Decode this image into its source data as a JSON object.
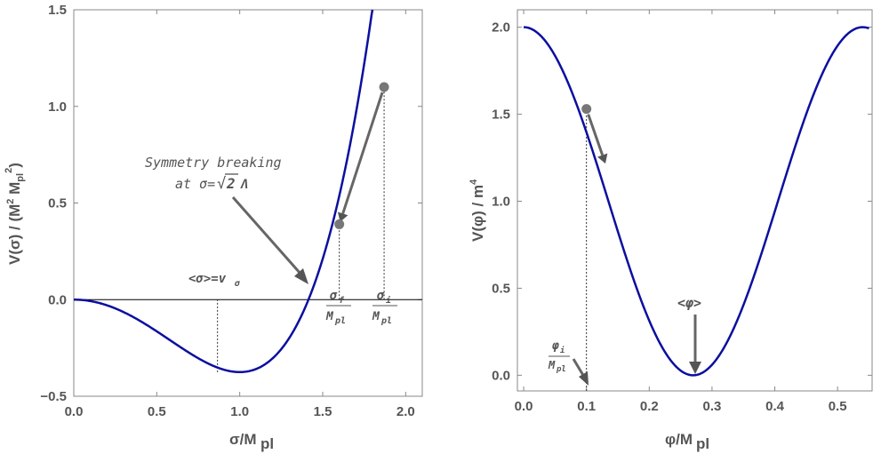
{
  "chart_data": [
    {
      "type": "line",
      "title": "",
      "xlabel": "σ/M",
      "xlabel_sub": "pl",
      "ylabel": "V(σ) / (M",
      "ylabel_sup1": "2",
      "ylabel_mid": " M",
      "ylabel_sub": "pl",
      "ylabel_sup2": "2",
      "ylabel_end": ")",
      "xlim": [
        0,
        2.1
      ],
      "ylim": [
        -0.5,
        1.5
      ],
      "xticks": [
        0.0,
        0.5,
        1.0,
        1.5,
        2.0
      ],
      "xtick_labels": [
        "0.0",
        "0.5",
        "1.0",
        "1.5",
        "2.0"
      ],
      "yticks": [
        -0.5,
        0.0,
        0.5,
        1.0,
        1.5
      ],
      "ytick_labels": [
        "−0.5",
        "0.0",
        "0.5",
        "1.0",
        "1.5"
      ],
      "series": [
        {
          "name": "V(σ)",
          "color": "#0b0f9f",
          "formula": "0.375*x^2*(x^2-2)",
          "x_range": [
            0,
            2.13
          ]
        }
      ],
      "reference_lines": [
        {
          "axis": "y",
          "value": 0.0,
          "color": "#000000"
        }
      ],
      "points": [
        {
          "name": "sigma-i",
          "x": 1.87,
          "y": 1.1
        },
        {
          "name": "sigma-f",
          "x": 1.6,
          "y": 0.39
        }
      ],
      "vertical_dotted": [
        {
          "x": 0.866,
          "y_from": -0.375,
          "y_to": 0.0
        },
        {
          "x": 1.6,
          "y_from": 0.0,
          "y_to": 0.39
        },
        {
          "x": 1.87,
          "y_from": 0.0,
          "y_to": 1.1
        }
      ],
      "annotations": {
        "symmetry_line1": "Symmetry breaking",
        "symmetry_line2_prefix": "at σ=",
        "symmetry_sqrt_arg": "2",
        "symmetry_lambda": "Λ",
        "vev_left": "<σ>=v",
        "vev_sub": "σ",
        "sigma_f_num": "σ",
        "sigma_f_num_sub": "f",
        "sigma_f_den": "M",
        "sigma_f_den_sub": "pl",
        "sigma_i_num": "σ",
        "sigma_i_num_sub": "i",
        "sigma_i_den": "M",
        "sigma_i_den_sub": "pl"
      }
    },
    {
      "type": "line",
      "title": "",
      "xlabel": "φ/M",
      "xlabel_sub": "pl",
      "ylabel": "V(φ) / m",
      "ylabel_sup": "4",
      "xlim": [
        -0.01,
        0.555
      ],
      "ylim": [
        -0.09,
        2.1
      ],
      "xticks": [
        0.0,
        0.1,
        0.2,
        0.3,
        0.4,
        0.5
      ],
      "xtick_labels": [
        "0.0",
        "0.1",
        "0.2",
        "0.3",
        "0.4",
        "0.5"
      ],
      "yticks": [
        0.0,
        0.5,
        1.0,
        1.5,
        2.0
      ],
      "ytick_labels": [
        "0.0",
        "0.5",
        "1.0",
        "1.5",
        "2.0"
      ],
      "series": [
        {
          "name": "V(φ)",
          "color": "#0b0f9f",
          "formula": "1+cos(pi*x/0.27)",
          "x_range": [
            0,
            0.55
          ]
        }
      ],
      "points": [
        {
          "name": "phi-i",
          "x": 0.1,
          "y": 1.53
        }
      ],
      "vertical_dotted": [
        {
          "x": 0.1,
          "y_from": -0.09,
          "y_to": 1.53
        }
      ],
      "annotations": {
        "vev": "<φ>",
        "phi_i_num": "φ",
        "phi_i_num_sub": "i",
        "phi_i_den": "M",
        "phi_i_den_sub": "pl"
      }
    }
  ]
}
